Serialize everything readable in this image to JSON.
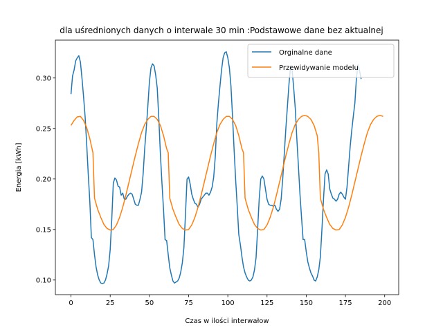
{
  "chart_data": {
    "type": "line",
    "title": "dla uśrednionych danych o interwale 30 min :Podstawowe dane bez aktualnej",
    "xlabel": "Czas w ilości interwałow",
    "ylabel": "Energia [kWh]",
    "xlim": [
      -9.95,
      208.95
    ],
    "ylim": [
      0.0855,
      0.3375
    ],
    "xticks": [
      0,
      25,
      50,
      75,
      100,
      125,
      150,
      175,
      200
    ],
    "yticks": [
      0.1,
      0.15,
      0.2,
      0.25,
      0.3
    ],
    "ytick_labels": [
      "0.10",
      "0.15",
      "0.20",
      "0.25",
      "0.30"
    ],
    "grid": false,
    "legend_position": "top-right",
    "series": [
      {
        "name": "Orginalne dane",
        "color": "#1f77b4",
        "points": [
          [
            0,
            0.284
          ],
          [
            1,
            0.302
          ],
          [
            2,
            0.308
          ],
          [
            3,
            0.317
          ],
          [
            4,
            0.32
          ],
          [
            5,
            0.322
          ],
          [
            6,
            0.316
          ],
          [
            7,
            0.3
          ],
          [
            8,
            0.282
          ],
          [
            9,
            0.262
          ],
          [
            10,
            0.235
          ],
          [
            11,
            0.205
          ],
          [
            12,
            0.178
          ],
          [
            13,
            0.142
          ],
          [
            14,
            0.14
          ],
          [
            15,
            0.125
          ],
          [
            16,
            0.113
          ],
          [
            17,
            0.105
          ],
          [
            18,
            0.1
          ],
          [
            19,
            0.097
          ],
          [
            20,
            0.0965
          ],
          [
            21,
            0.097
          ],
          [
            22,
            0.1
          ],
          [
            23,
            0.106
          ],
          [
            24,
            0.114
          ],
          [
            25,
            0.13
          ],
          [
            26,
            0.16
          ],
          [
            27,
            0.196
          ],
          [
            28,
            0.201
          ],
          [
            29,
            0.199
          ],
          [
            30,
            0.193
          ],
          [
            31,
            0.192
          ],
          [
            32,
            0.184
          ],
          [
            33,
            0.186
          ],
          [
            34,
            0.18
          ],
          [
            35,
            0.18
          ],
          [
            36,
            0.183
          ],
          [
            37,
            0.185
          ],
          [
            38,
            0.186
          ],
          [
            39,
            0.185
          ],
          [
            40,
            0.18
          ],
          [
            41,
            0.175
          ],
          [
            42,
            0.174
          ],
          [
            43,
            0.174
          ],
          [
            44,
            0.18
          ],
          [
            45,
            0.187
          ],
          [
            46,
            0.205
          ],
          [
            47,
            0.23
          ],
          [
            48,
            0.25
          ],
          [
            49,
            0.272
          ],
          [
            50,
            0.296
          ],
          [
            51,
            0.31
          ],
          [
            52,
            0.314
          ],
          [
            53,
            0.312
          ],
          [
            54,
            0.303
          ],
          [
            55,
            0.29
          ],
          [
            56,
            0.26
          ],
          [
            57,
            0.225
          ],
          [
            58,
            0.196
          ],
          [
            59,
            0.17
          ],
          [
            60,
            0.14
          ],
          [
            61,
            0.139
          ],
          [
            62,
            0.125
          ],
          [
            63,
            0.112
          ],
          [
            64,
            0.105
          ],
          [
            65,
            0.099
          ],
          [
            66,
            0.097
          ],
          [
            67,
            0.098
          ],
          [
            68,
            0.099
          ],
          [
            69,
            0.102
          ],
          [
            70,
            0.108
          ],
          [
            71,
            0.117
          ],
          [
            72,
            0.132
          ],
          [
            73,
            0.165
          ],
          [
            74,
            0.2
          ],
          [
            75,
            0.202
          ],
          [
            76,
            0.195
          ],
          [
            77,
            0.185
          ],
          [
            78,
            0.18
          ],
          [
            79,
            0.176
          ],
          [
            80,
            0.175
          ],
          [
            81,
            0.172
          ],
          [
            82,
            0.175
          ],
          [
            83,
            0.18
          ],
          [
            84,
            0.182
          ],
          [
            85,
            0.184
          ],
          [
            86,
            0.186
          ],
          [
            87,
            0.186
          ],
          [
            88,
            0.184
          ],
          [
            89,
            0.187
          ],
          [
            90,
            0.192
          ],
          [
            91,
            0.202
          ],
          [
            92,
            0.222
          ],
          [
            93,
            0.255
          ],
          [
            94,
            0.275
          ],
          [
            95,
            0.292
          ],
          [
            96,
            0.308
          ],
          [
            97,
            0.32
          ],
          [
            98,
            0.325
          ],
          [
            99,
            0.326
          ],
          [
            100,
            0.32
          ],
          [
            101,
            0.31
          ],
          [
            102,
            0.292
          ],
          [
            103,
            0.262
          ],
          [
            104,
            0.229
          ],
          [
            105,
            0.199
          ],
          [
            106,
            0.173
          ],
          [
            107,
            0.145
          ],
          [
            108,
            0.135
          ],
          [
            109,
            0.123
          ],
          [
            110,
            0.113
          ],
          [
            111,
            0.107
          ],
          [
            112,
            0.103
          ],
          [
            113,
            0.1
          ],
          [
            114,
            0.099
          ],
          [
            115,
            0.1
          ],
          [
            116,
            0.103
          ],
          [
            117,
            0.11
          ],
          [
            118,
            0.122
          ],
          [
            119,
            0.15
          ],
          [
            120,
            0.18
          ],
          [
            121,
            0.2
          ],
          [
            122,
            0.203
          ],
          [
            123,
            0.2
          ],
          [
            124,
            0.19
          ],
          [
            125,
            0.18
          ],
          [
            126,
            0.175
          ],
          [
            127,
            0.174
          ],
          [
            128,
            0.174
          ],
          [
            129,
            0.173
          ],
          [
            130,
            0.174
          ],
          [
            131,
            0.17
          ],
          [
            132,
            0.168
          ],
          [
            133,
            0.17
          ],
          [
            134,
            0.18
          ],
          [
            135,
            0.2
          ],
          [
            136,
            0.225
          ],
          [
            137,
            0.25
          ],
          [
            138,
            0.272
          ],
          [
            139,
            0.294
          ],
          [
            140,
            0.312
          ],
          [
            141,
            0.308
          ],
          [
            142,
            0.29
          ],
          [
            143,
            0.27
          ],
          [
            144,
            0.24
          ],
          [
            145,
            0.213
          ],
          [
            146,
            0.185
          ],
          [
            147,
            0.162
          ],
          [
            148,
            0.14
          ],
          [
            149,
            0.14
          ],
          [
            150,
            0.128
          ],
          [
            151,
            0.118
          ],
          [
            152,
            0.112
          ],
          [
            153,
            0.107
          ],
          [
            154,
            0.104
          ],
          [
            155,
            0.1
          ],
          [
            156,
            0.099
          ],
          [
            157,
            0.103
          ],
          [
            158,
            0.11
          ],
          [
            159,
            0.123
          ],
          [
            160,
            0.15
          ],
          [
            161,
            0.18
          ],
          [
            162,
            0.205
          ],
          [
            163,
            0.209
          ],
          [
            164,
            0.205
          ],
          [
            165,
            0.19
          ],
          [
            166,
            0.185
          ],
          [
            167,
            0.181
          ],
          [
            168,
            0.18
          ],
          [
            169,
            0.178
          ],
          [
            170,
            0.18
          ],
          [
            171,
            0.185
          ],
          [
            172,
            0.187
          ],
          [
            173,
            0.185
          ],
          [
            174,
            0.182
          ],
          [
            175,
            0.18
          ],
          [
            176,
            0.192
          ],
          [
            177,
            0.212
          ],
          [
            178,
            0.232
          ],
          [
            179,
            0.248
          ],
          [
            180,
            0.262
          ],
          [
            181,
            0.275
          ],
          [
            182,
            0.3
          ],
          [
            183,
            0.313
          ],
          [
            184,
            0.307
          ],
          [
            185,
            0.299
          ]
        ]
      },
      {
        "name": "Przewidywanie modelu",
        "color": "#ff7f0e",
        "points": [
          [
            0,
            0.253
          ],
          [
            2,
            0.258
          ],
          [
            4,
            0.2615
          ],
          [
            6,
            0.262
          ],
          [
            8,
            0.258
          ],
          [
            10,
            0.251
          ],
          [
            12,
            0.24
          ],
          [
            14,
            0.226
          ],
          [
            15,
            0.181
          ],
          [
            17,
            0.17
          ],
          [
            19,
            0.162
          ],
          [
            21,
            0.155
          ],
          [
            23,
            0.151
          ],
          [
            25,
            0.1495
          ],
          [
            27,
            0.15
          ],
          [
            29,
            0.1545
          ],
          [
            31,
            0.162
          ],
          [
            33,
            0.172
          ],
          [
            35,
            0.184
          ],
          [
            37,
            0.197
          ],
          [
            39,
            0.21
          ],
          [
            41,
            0.223
          ],
          [
            43,
            0.235
          ],
          [
            45,
            0.246
          ],
          [
            47,
            0.254
          ],
          [
            49,
            0.259
          ],
          [
            51,
            0.262
          ],
          [
            53,
            0.262
          ],
          [
            55,
            0.259
          ],
          [
            57,
            0.253
          ],
          [
            59,
            0.243
          ],
          [
            61,
            0.23
          ],
          [
            62,
            0.226
          ],
          [
            63,
            0.181
          ],
          [
            65,
            0.17
          ],
          [
            67,
            0.162
          ],
          [
            69,
            0.155
          ],
          [
            71,
            0.151
          ],
          [
            73,
            0.1495
          ],
          [
            75,
            0.15
          ],
          [
            77,
            0.1545
          ],
          [
            79,
            0.162
          ],
          [
            81,
            0.172
          ],
          [
            83,
            0.184
          ],
          [
            85,
            0.197
          ],
          [
            87,
            0.21
          ],
          [
            89,
            0.223
          ],
          [
            91,
            0.235
          ],
          [
            93,
            0.246
          ],
          [
            95,
            0.254
          ],
          [
            97,
            0.259
          ],
          [
            99,
            0.262
          ],
          [
            101,
            0.262
          ],
          [
            103,
            0.259
          ],
          [
            105,
            0.253
          ],
          [
            107,
            0.243
          ],
          [
            109,
            0.23
          ],
          [
            110,
            0.226
          ],
          [
            111,
            0.181
          ],
          [
            113,
            0.17
          ],
          [
            115,
            0.162
          ],
          [
            117,
            0.155
          ],
          [
            119,
            0.151
          ],
          [
            121,
            0.1495
          ],
          [
            123,
            0.15
          ],
          [
            125,
            0.1545
          ],
          [
            127,
            0.162
          ],
          [
            129,
            0.172
          ],
          [
            131,
            0.184
          ],
          [
            133,
            0.197
          ],
          [
            135,
            0.21
          ],
          [
            137,
            0.223
          ],
          [
            139,
            0.235
          ],
          [
            141,
            0.246
          ],
          [
            143,
            0.254
          ],
          [
            145,
            0.259
          ],
          [
            147,
            0.262
          ],
          [
            149,
            0.263
          ],
          [
            151,
            0.262
          ],
          [
            153,
            0.259
          ],
          [
            155,
            0.253
          ],
          [
            157,
            0.243
          ],
          [
            158,
            0.226
          ],
          [
            159,
            0.181
          ],
          [
            161,
            0.17
          ],
          [
            163,
            0.162
          ],
          [
            165,
            0.155
          ],
          [
            167,
            0.151
          ],
          [
            169,
            0.1495
          ],
          [
            171,
            0.15
          ],
          [
            173,
            0.1545
          ],
          [
            175,
            0.162
          ],
          [
            177,
            0.172
          ],
          [
            179,
            0.184
          ],
          [
            181,
            0.197
          ],
          [
            183,
            0.21
          ],
          [
            185,
            0.223
          ],
          [
            187,
            0.235
          ],
          [
            189,
            0.246
          ],
          [
            191,
            0.254
          ],
          [
            193,
            0.259
          ],
          [
            195,
            0.262
          ],
          [
            197,
            0.263
          ],
          [
            199,
            0.262
          ]
        ]
      }
    ]
  }
}
